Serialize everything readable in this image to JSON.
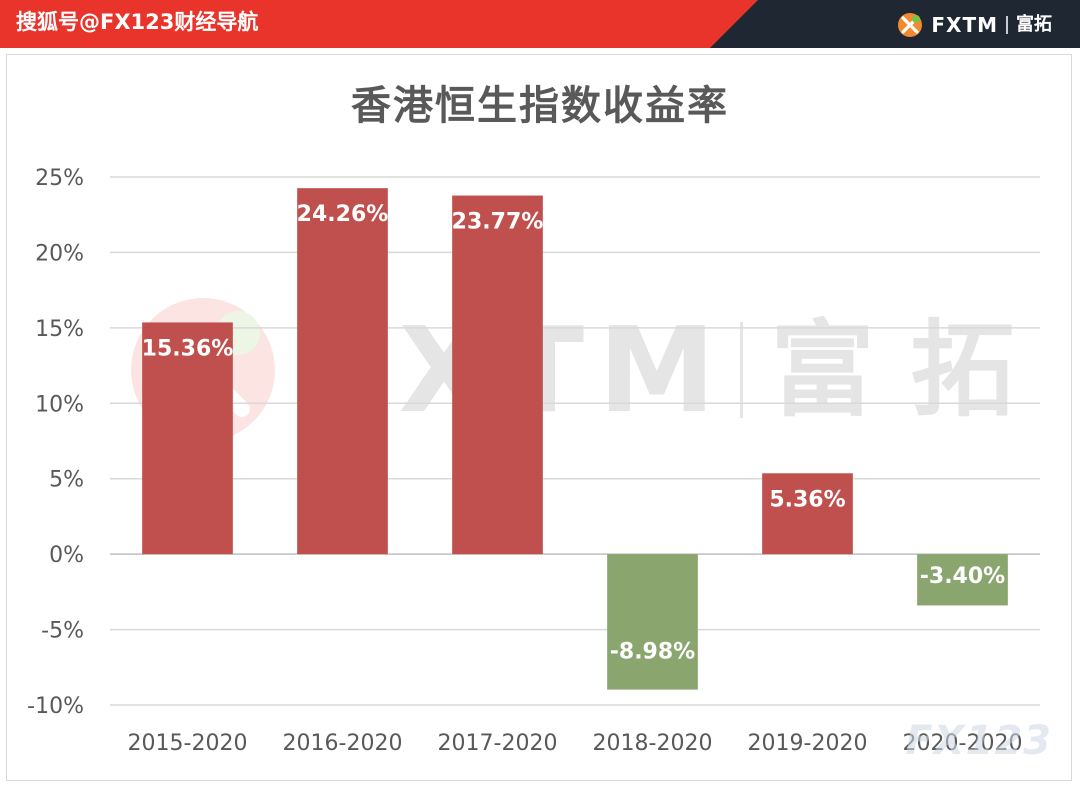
{
  "banner": {
    "source": "搜狐号@FX123财经导航",
    "brand": "FXTM",
    "brand_cn": "富拓",
    "red": "#e8342b",
    "dark": "#1f2733"
  },
  "watermark": {
    "text": "FXTM",
    "cn": "富拓",
    "corner": "FX123"
  },
  "chart_data": {
    "type": "bar",
    "title": "香港恒生指数收益率",
    "categories": [
      "2015-2020",
      "2016-2020",
      "2017-2020",
      "2018-2020",
      "2019-2020",
      "2020-2020"
    ],
    "values": [
      15.36,
      24.26,
      23.77,
      -8.98,
      5.36,
      -3.4
    ],
    "data_labels": [
      "15.36%",
      "24.26%",
      "23.77%",
      "-8.98%",
      "5.36%",
      "-3.40%"
    ],
    "ylim": [
      -10,
      25
    ],
    "yticks": [
      25,
      20,
      15,
      10,
      5,
      0,
      -5,
      -10
    ],
    "ytick_labels": [
      "25%",
      "20%",
      "15%",
      "10%",
      "5%",
      "0%",
      "-5%",
      "-10%"
    ],
    "xlabel": "",
    "ylabel": "",
    "grid": true,
    "legend": "none",
    "colors": {
      "positive": "#c0504d",
      "negative": "#8aa66e"
    }
  }
}
